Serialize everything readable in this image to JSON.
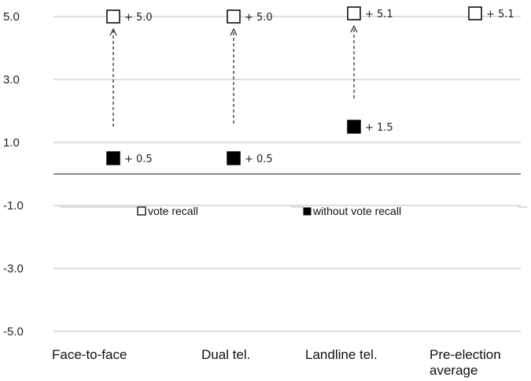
{
  "chart_data": {
    "type": "scatter",
    "title": "",
    "xlabel": "",
    "ylabel": "",
    "ylim": [
      -5.0,
      5.0
    ],
    "yticks": [
      "5.0",
      "3.0",
      "1.0",
      "-1.0",
      "-3.0",
      "-5.0"
    ],
    "categories": [
      [
        "Face-to-face"
      ],
      [
        "Dual tel."
      ],
      [
        "Landline tel."
      ],
      [
        "Pre-election",
        "average"
      ]
    ],
    "series": [
      {
        "name": "vote recall",
        "marker": "open-square",
        "color": "#000000",
        "values": [
          5.0,
          5.0,
          5.1,
          5.1
        ],
        "labels": [
          "+ 5.0",
          "+ 5.0",
          "+ 5.1",
          "+ 5.1"
        ]
      },
      {
        "name": "without vote recall",
        "marker": "filled-square",
        "color": "#000000",
        "values": [
          0.5,
          0.5,
          1.5,
          null
        ],
        "labels": [
          "+ 0.5",
          "+ 0.5",
          "+ 1.5",
          ""
        ]
      }
    ],
    "arrows": [
      {
        "category": 0,
        "from": 1.5,
        "to": 4.6
      },
      {
        "category": 1,
        "from": 1.6,
        "to": 4.6
      },
      {
        "category": 2,
        "from": 2.4,
        "to": 4.7
      }
    ],
    "zero_line": true,
    "grid": true,
    "legend": "middle"
  }
}
